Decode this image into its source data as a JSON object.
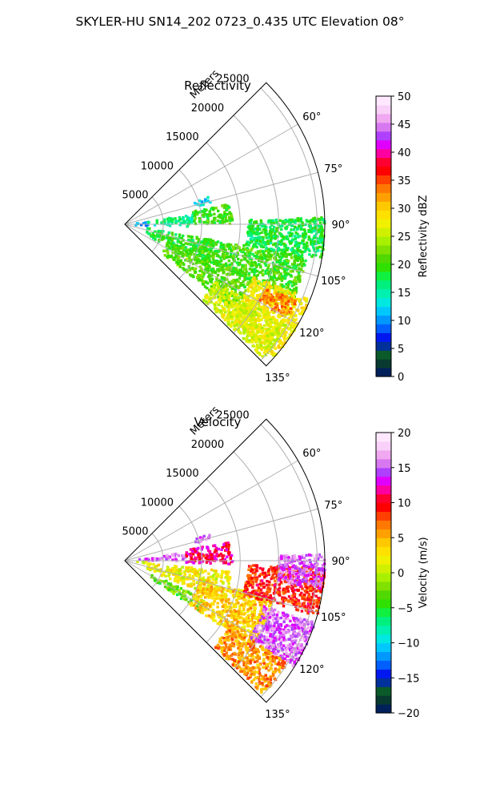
{
  "figure": {
    "title": "SKYLER-HU  SN14_202  0723_0.435 UTC Elevation 08°"
  },
  "chart_data": [
    {
      "type": "polar-sector",
      "title": "Reflectivity",
      "radial_label": "Meters",
      "r_ticks": [
        "5000",
        "10000",
        "15000",
        "20000",
        "25000"
      ],
      "r_max": 26000,
      "theta_range_deg": [
        45,
        135
      ],
      "theta_ticks": [
        "60°",
        "75°",
        "90°",
        "105°",
        "120°",
        "135°"
      ],
      "field": "reflectivity",
      "colorbar": {
        "label": "Reflectivity dBZ",
        "min": 0,
        "max": 50,
        "ticks": [
          "0",
          "5",
          "10",
          "15",
          "20",
          "25",
          "30",
          "35",
          "40",
          "45",
          "50"
        ],
        "colors": [
          "#00205a",
          "#083a30",
          "#0b5a2a",
          "#00309a",
          "#0018f0",
          "#0060ff",
          "#0098ff",
          "#00c8ff",
          "#00e8e0",
          "#00f0b0",
          "#00f080",
          "#10f040",
          "#30e000",
          "#50d800",
          "#80e000",
          "#a8f000",
          "#d0f000",
          "#f0f000",
          "#ffe000",
          "#ffc800",
          "#ffa000",
          "#ff7800",
          "#ff4000",
          "#ff0000",
          "#ff0030",
          "#ff00a0",
          "#e000ff",
          "#b040ff",
          "#d878f0",
          "#f0a8f0",
          "#f8d0f8",
          "#ffe8ff"
        ]
      },
      "echoes": [
        {
          "r0": 800,
          "r1": 3000,
          "t0": 83,
          "t1": 95,
          "v": 10
        },
        {
          "r0": 3000,
          "r1": 9000,
          "t0": 82,
          "t1": 92,
          "v": 16
        },
        {
          "r0": 9000,
          "r1": 14000,
          "t0": 79,
          "t1": 90,
          "v": 20
        },
        {
          "r0": 9500,
          "r1": 11500,
          "t0": 72,
          "t1": 76,
          "v": 12
        },
        {
          "r0": 3000,
          "r1": 12000,
          "t0": 100,
          "t1": 118,
          "v": 19
        },
        {
          "r0": 6000,
          "r1": 18000,
          "t0": 112,
          "t1": 128,
          "v": 21
        },
        {
          "r0": 10000,
          "r1": 24000,
          "t0": 100,
          "t1": 114,
          "v": 20
        },
        {
          "r0": 16000,
          "r1": 26000,
          "t0": 88,
          "t1": 100,
          "v": 18
        },
        {
          "r0": 18000,
          "r1": 26000,
          "t0": 112,
          "t1": 132,
          "v": 28
        },
        {
          "r0": 14000,
          "r1": 25000,
          "t0": 122,
          "t1": 134,
          "v": 26
        },
        {
          "r0": 20000,
          "r1": 24500,
          "t0": 114,
          "t1": 120,
          "v": 33
        }
      ]
    },
    {
      "type": "polar-sector",
      "title": "Velocity",
      "radial_label": "Meters",
      "r_ticks": [
        "5000",
        "10000",
        "15000",
        "20000",
        "25000"
      ],
      "r_max": 26000,
      "theta_range_deg": [
        45,
        135
      ],
      "theta_ticks": [
        "60°",
        "75°",
        "90°",
        "105°",
        "120°",
        "135°"
      ],
      "field": "velocity",
      "colorbar": {
        "label": "Velocity (m/s)",
        "min": -20,
        "max": 20,
        "ticks": [
          "−20",
          "−15",
          "−10",
          "−5",
          "0",
          "5",
          "10",
          "15",
          "20"
        ],
        "colors": [
          "#00205a",
          "#083a30",
          "#0b5a2a",
          "#00309a",
          "#0018f0",
          "#0060ff",
          "#0098ff",
          "#00c8ff",
          "#00e8e0",
          "#00f0b0",
          "#00f080",
          "#10f040",
          "#30e000",
          "#50d800",
          "#80e000",
          "#a8f000",
          "#d0f000",
          "#f0f000",
          "#ffe000",
          "#ffc800",
          "#ffa000",
          "#ff7800",
          "#ff4000",
          "#ff0000",
          "#ff0030",
          "#ff00a0",
          "#e000ff",
          "#b040ff",
          "#d878f0",
          "#f0a8f0",
          "#f8d0f8",
          "#ffe8ff"
        ]
      },
      "echoes": [
        {
          "r0": 800,
          "r1": 3500,
          "t0": 84,
          "t1": 92,
          "v": 14
        },
        {
          "r0": 800,
          "r1": 3500,
          "t0": 92,
          "t1": 98,
          "v": 1
        },
        {
          "r0": 3500,
          "r1": 8000,
          "t0": 82,
          "t1": 90,
          "v": 15
        },
        {
          "r0": 8000,
          "r1": 14000,
          "t0": 80,
          "t1": 92,
          "v": 11
        },
        {
          "r0": 9500,
          "r1": 11500,
          "t0": 72,
          "t1": 76,
          "v": 15
        },
        {
          "r0": 3000,
          "r1": 14000,
          "t0": 96,
          "t1": 112,
          "v": 2
        },
        {
          "r0": 4000,
          "r1": 12000,
          "t0": 116,
          "t1": 124,
          "v": -3
        },
        {
          "r0": 10000,
          "r1": 20000,
          "t0": 104,
          "t1": 124,
          "v": 4
        },
        {
          "r0": 16000,
          "r1": 26000,
          "t0": 92,
          "t1": 106,
          "v": 9
        },
        {
          "r0": 20000,
          "r1": 26000,
          "t0": 88,
          "t1": 98,
          "v": 15
        },
        {
          "r0": 19000,
          "r1": 26000,
          "t0": 108,
          "t1": 122,
          "v": 15
        },
        {
          "r0": 16000,
          "r1": 25000,
          "t0": 122,
          "t1": 134,
          "v": 6
        }
      ]
    }
  ]
}
